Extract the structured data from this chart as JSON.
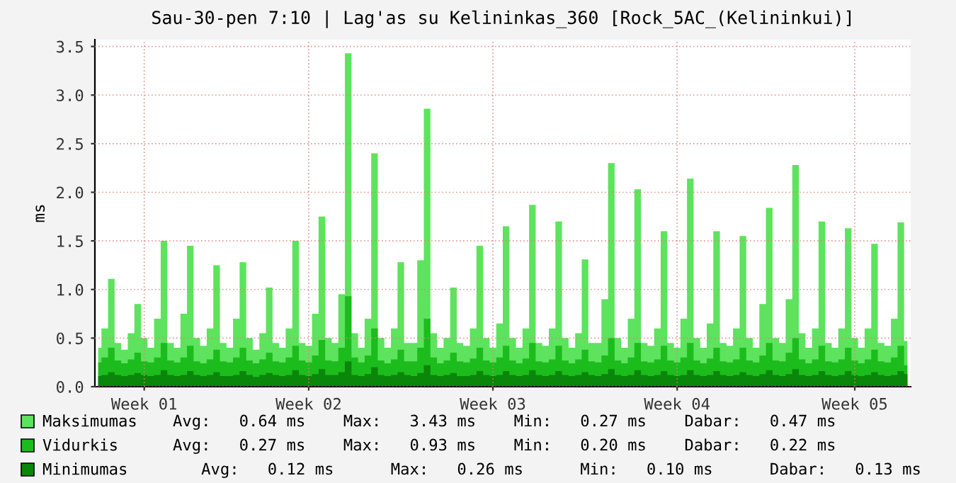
{
  "chart_data": {
    "type": "area",
    "title": "Sau-30-pen 7:10 | Lag'as su Kelininkas_360 [Rock_5AC_(Kelininkui)]",
    "ylabel": "ms",
    "categories": [
      null,
      null,
      null,
      null,
      null,
      null,
      null,
      "Week 01",
      null,
      null,
      null,
      null,
      null,
      null,
      null,
      null,
      null,
      null,
      null,
      null,
      null,
      null,
      null,
      null,
      null,
      null,
      null,
      null,
      null,
      null,
      null,
      null,
      "Week 02",
      null,
      null,
      null,
      null,
      null,
      null,
      null,
      null,
      null,
      null,
      null,
      null,
      null,
      null,
      null,
      null,
      null,
      null,
      null,
      null,
      null,
      null,
      null,
      null,
      null,
      null,
      null,
      "Week 03",
      null,
      null,
      null,
      null,
      null,
      null,
      null,
      null,
      null,
      null,
      null,
      null,
      null,
      null,
      null,
      null,
      null,
      null,
      null,
      null,
      null,
      null,
      null,
      null,
      null,
      null,
      null,
      "Week 04",
      null,
      null,
      null,
      null,
      null,
      null,
      null,
      null,
      null,
      null,
      null,
      null,
      null,
      null,
      null,
      null,
      null,
      null,
      null,
      null,
      null,
      null,
      null,
      null,
      null,
      null,
      "Week 05",
      null,
      null,
      null,
      null,
      null,
      null,
      null,
      null
    ],
    "series": [
      {
        "name": "Maksimumas",
        "color": "#5de35d",
        "values": [
          0.4,
          0.6,
          1.11,
          0.45,
          0.38,
          0.55,
          0.85,
          0.5,
          0.4,
          0.7,
          1.5,
          0.45,
          0.4,
          0.75,
          1.45,
          0.5,
          0.42,
          0.6,
          1.25,
          0.45,
          0.4,
          0.7,
          1.28,
          0.5,
          0.38,
          0.55,
          1.02,
          0.45,
          0.4,
          0.6,
          1.5,
          0.45,
          0.42,
          0.75,
          1.75,
          0.5,
          0.45,
          0.95,
          3.43,
          0.55,
          0.4,
          0.7,
          2.4,
          0.5,
          0.4,
          0.6,
          1.28,
          0.45,
          0.45,
          1.3,
          2.86,
          0.55,
          0.4,
          0.5,
          1.02,
          0.45,
          0.42,
          0.6,
          1.45,
          0.5,
          0.4,
          0.65,
          1.65,
          0.5,
          0.4,
          0.6,
          1.87,
          0.45,
          0.42,
          0.6,
          1.7,
          0.5,
          0.4,
          0.55,
          1.31,
          0.45,
          0.45,
          0.9,
          2.3,
          0.5,
          0.4,
          0.7,
          2.03,
          0.45,
          0.42,
          0.6,
          1.6,
          0.45,
          0.4,
          0.7,
          2.14,
          0.5,
          0.4,
          0.65,
          1.6,
          0.45,
          0.42,
          0.6,
          1.55,
          0.5,
          0.4,
          0.85,
          1.84,
          0.5,
          0.45,
          0.9,
          2.28,
          0.55,
          0.4,
          0.6,
          1.7,
          0.45,
          0.4,
          0.6,
          1.63,
          0.5,
          0.4,
          0.6,
          1.47,
          0.45,
          0.42,
          0.7,
          1.69,
          0.47
        ]
      },
      {
        "name": "Vidurkis",
        "color": "#1cbc1c",
        "values": [
          0.25,
          0.3,
          0.4,
          0.27,
          0.24,
          0.28,
          0.35,
          0.26,
          0.25,
          0.3,
          0.45,
          0.27,
          0.25,
          0.3,
          0.42,
          0.26,
          0.24,
          0.28,
          0.38,
          0.26,
          0.25,
          0.3,
          0.4,
          0.27,
          0.24,
          0.28,
          0.35,
          0.26,
          0.25,
          0.3,
          0.42,
          0.27,
          0.25,
          0.32,
          0.48,
          0.27,
          0.26,
          0.4,
          0.93,
          0.3,
          0.25,
          0.32,
          0.6,
          0.27,
          0.24,
          0.28,
          0.38,
          0.26,
          0.26,
          0.4,
          0.7,
          0.3,
          0.24,
          0.27,
          0.35,
          0.26,
          0.25,
          0.29,
          0.4,
          0.27,
          0.25,
          0.3,
          0.42,
          0.27,
          0.24,
          0.29,
          0.45,
          0.26,
          0.25,
          0.28,
          0.42,
          0.27,
          0.24,
          0.28,
          0.38,
          0.26,
          0.25,
          0.32,
          0.5,
          0.27,
          0.24,
          0.3,
          0.45,
          0.26,
          0.25,
          0.28,
          0.42,
          0.27,
          0.25,
          0.3,
          0.45,
          0.27,
          0.24,
          0.29,
          0.4,
          0.26,
          0.25,
          0.28,
          0.4,
          0.27,
          0.25,
          0.32,
          0.45,
          0.27,
          0.26,
          0.35,
          0.5,
          0.28,
          0.24,
          0.28,
          0.42,
          0.26,
          0.25,
          0.28,
          0.4,
          0.27,
          0.24,
          0.28,
          0.38,
          0.26,
          0.25,
          0.3,
          0.42,
          0.22
        ]
      },
      {
        "name": "Minimumas",
        "color": "#0a860a",
        "values": [
          0.11,
          0.12,
          0.15,
          0.12,
          0.11,
          0.12,
          0.14,
          0.12,
          0.11,
          0.12,
          0.17,
          0.12,
          0.11,
          0.12,
          0.16,
          0.12,
          0.11,
          0.12,
          0.15,
          0.11,
          0.11,
          0.12,
          0.16,
          0.12,
          0.1,
          0.12,
          0.14,
          0.12,
          0.11,
          0.12,
          0.17,
          0.12,
          0.11,
          0.13,
          0.18,
          0.12,
          0.12,
          0.15,
          0.26,
          0.12,
          0.11,
          0.13,
          0.2,
          0.12,
          0.11,
          0.12,
          0.15,
          0.12,
          0.11,
          0.14,
          0.22,
          0.12,
          0.11,
          0.12,
          0.14,
          0.11,
          0.11,
          0.12,
          0.16,
          0.12,
          0.11,
          0.12,
          0.16,
          0.12,
          0.11,
          0.12,
          0.17,
          0.12,
          0.11,
          0.12,
          0.16,
          0.12,
          0.11,
          0.12,
          0.15,
          0.12,
          0.11,
          0.13,
          0.18,
          0.12,
          0.11,
          0.12,
          0.17,
          0.12,
          0.11,
          0.12,
          0.16,
          0.12,
          0.11,
          0.12,
          0.17,
          0.12,
          0.11,
          0.12,
          0.16,
          0.12,
          0.11,
          0.12,
          0.15,
          0.12,
          0.11,
          0.13,
          0.17,
          0.12,
          0.11,
          0.13,
          0.18,
          0.12,
          0.11,
          0.12,
          0.16,
          0.12,
          0.11,
          0.12,
          0.16,
          0.12,
          0.11,
          0.12,
          0.15,
          0.12,
          0.11,
          0.12,
          0.16,
          0.13
        ]
      }
    ],
    "ylim": [
      0,
      3.57
    ],
    "yticks": [
      {
        "value": 0,
        "label": "0.0"
      },
      0.5,
      {
        "value": 1,
        "label": "1.0"
      },
      1.5,
      {
        "value": 2,
        "label": "2.0"
      },
      2.5,
      {
        "value": 3,
        "label": "3.0"
      },
      3.5
    ],
    "grid": true,
    "legend": "bottom",
    "annotations": [
      "Avg:   0.64 ms    Max:   3.43 ms    Min:   0.27 ms    Dabar:   0.47 ms",
      "Avg:   0.27 ms    Max:   0.93 ms    Min:   0.20 ms    Dabar:   0.22 ms",
      "   Avg:   0.12 ms      Max:   0.26 ms      Min:   0.10 ms      Dabar:   0.13 ms"
    ]
  }
}
